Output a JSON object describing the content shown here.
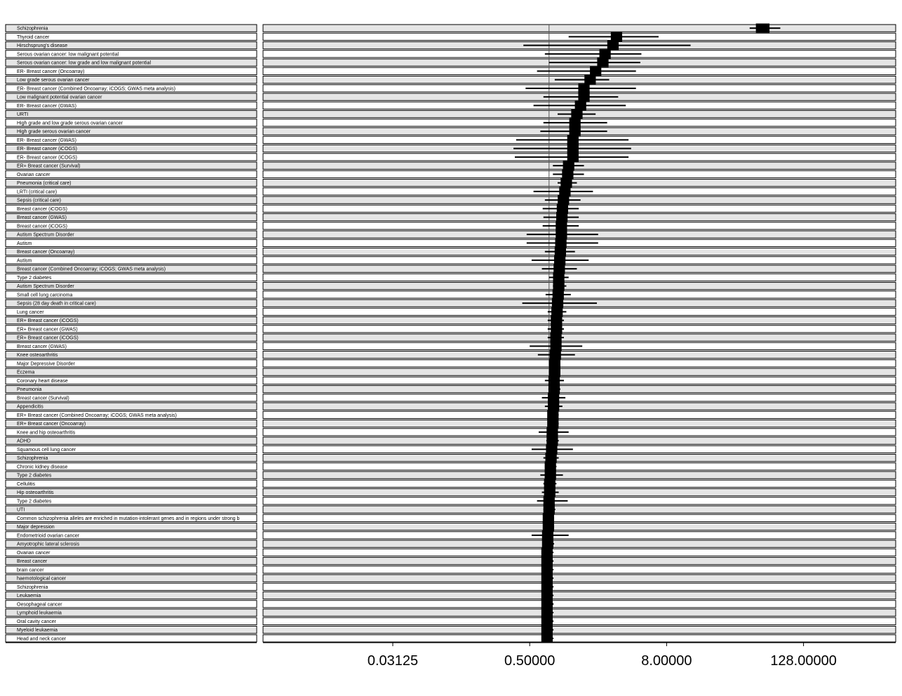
{
  "chart_data": {
    "type": "forest",
    "xscale": "log2",
    "xlabel": "",
    "ylabel": "",
    "xlim": [
      0.0039,
      512
    ],
    "reference_line": 0.74,
    "x_ticks": [
      "0.03125",
      "0.50000",
      "8.00000",
      "128.00000"
    ],
    "x_tick_values": [
      0.03125,
      0.5,
      8,
      128
    ],
    "rows": [
      {
        "label": "Schizophrenia",
        "estimate": 56,
        "lower": 43,
        "upper": 80,
        "weight": 0.3
      },
      {
        "label": "Thyroid cancer",
        "estimate": 2.9,
        "lower": 1.1,
        "upper": 6.8,
        "weight": 0.25
      },
      {
        "label": "Hirschsprung's disease",
        "estimate": 2.7,
        "lower": 0.44,
        "upper": 13,
        "weight": 0.25
      },
      {
        "label": "Serous ovarian cancer: low malignant potential",
        "estimate": 2.3,
        "lower": 0.68,
        "upper": 4.8,
        "weight": 0.25
      },
      {
        "label": "Serous ovarian cancer: low grade and low malignant potential",
        "estimate": 2.2,
        "lower": 0.74,
        "upper": 4.7,
        "weight": 0.25
      },
      {
        "label": "ER- Breast cancer (Oncoarray)",
        "estimate": 1.9,
        "lower": 0.58,
        "upper": 4.3,
        "weight": 0.25
      },
      {
        "label": "Low grade serous ovarian cancer",
        "estimate": 1.7,
        "lower": 0.83,
        "upper": 2.5,
        "weight": 0.25
      },
      {
        "label": "ER- Breast cancer (Combined Oncoarray; iCOGS; GWAS meta analysis)",
        "estimate": 1.5,
        "lower": 0.46,
        "upper": 4.3,
        "weight": 0.25
      },
      {
        "label": "Low malignant potential ovarian cancer",
        "estimate": 1.5,
        "lower": 0.66,
        "upper": 3.0,
        "weight": 0.25
      },
      {
        "label": "ER- Breast cancer (GWAS)",
        "estimate": 1.4,
        "lower": 0.54,
        "upper": 3.5,
        "weight": 0.25
      },
      {
        "label": "URTI",
        "estimate": 1.3,
        "lower": 0.88,
        "upper": 1.9,
        "weight": 0.25
      },
      {
        "label": "High grade and low grade serous ovarian cancer",
        "estimate": 1.25,
        "lower": 0.66,
        "upper": 2.4,
        "weight": 0.25
      },
      {
        "label": "High grade serous ovarian cancer",
        "estimate": 1.25,
        "lower": 0.62,
        "upper": 2.4,
        "weight": 0.25
      },
      {
        "label": "ER- Breast cancer (GWAS)",
        "estimate": 1.2,
        "lower": 0.38,
        "upper": 3.7,
        "weight": 0.25
      },
      {
        "label": "ER- Breast cancer (iCOGS)",
        "estimate": 1.2,
        "lower": 0.36,
        "upper": 3.9,
        "weight": 0.25
      },
      {
        "label": "ER- Breast cancer (iCOGS)",
        "estimate": 1.2,
        "lower": 0.37,
        "upper": 3.7,
        "weight": 0.25
      },
      {
        "label": "ER+ Breast cancer (Survival)",
        "estimate": 1.1,
        "lower": 0.8,
        "upper": 1.5,
        "weight": 0.25
      },
      {
        "label": "Ovarian cancer",
        "estimate": 1.08,
        "lower": 0.8,
        "upper": 1.5,
        "weight": 0.25
      },
      {
        "label": "Pneumonia (critical care)",
        "estimate": 1.05,
        "lower": 0.88,
        "upper": 1.3,
        "weight": 0.25
      },
      {
        "label": "LRTI (critical care)",
        "estimate": 1.02,
        "lower": 0.54,
        "upper": 1.8,
        "weight": 0.25
      },
      {
        "label": "Sepsis (critical care)",
        "estimate": 0.99,
        "lower": 0.68,
        "upper": 1.4,
        "weight": 0.25
      },
      {
        "label": "Breast cancer (iCOGS)",
        "estimate": 0.97,
        "lower": 0.65,
        "upper": 1.35,
        "weight": 0.25
      },
      {
        "label": "Breast cancer (GWAS)",
        "estimate": 0.96,
        "lower": 0.66,
        "upper": 1.35,
        "weight": 0.25
      },
      {
        "label": "Breast cancer (iCOGS)",
        "estimate": 0.95,
        "lower": 0.65,
        "upper": 1.35,
        "weight": 0.25
      },
      {
        "label": "Autism Spectrum Disorder",
        "estimate": 0.95,
        "lower": 0.47,
        "upper": 2.0,
        "weight": 0.25
      },
      {
        "label": "Autism",
        "estimate": 0.94,
        "lower": 0.47,
        "upper": 2.0,
        "weight": 0.25
      },
      {
        "label": "Breast cancer (Oncoarray)",
        "estimate": 0.93,
        "lower": 0.68,
        "upper": 1.25,
        "weight": 0.25
      },
      {
        "label": "Autism",
        "estimate": 0.92,
        "lower": 0.52,
        "upper": 1.65,
        "weight": 0.25
      },
      {
        "label": "Breast cancer (Combined Oncoarray; iCOGS; GWAS meta analysis)",
        "estimate": 0.91,
        "lower": 0.64,
        "upper": 1.3,
        "weight": 0.25
      },
      {
        "label": "Type 2 diabetes",
        "estimate": 0.9,
        "lower": 0.74,
        "upper": 1.1,
        "weight": 0.25
      },
      {
        "label": "Autism Spectrum Disorder",
        "estimate": 0.9,
        "lower": 0.8,
        "upper": 1.05,
        "weight": 0.25
      },
      {
        "label": "Small cell lung carcinoma",
        "estimate": 0.89,
        "lower": 0.69,
        "upper": 1.15,
        "weight": 0.25
      },
      {
        "label": "Sepsis (28 day death in critical care)",
        "estimate": 0.88,
        "lower": 0.43,
        "upper": 1.95,
        "weight": 0.25
      },
      {
        "label": "Lung cancer",
        "estimate": 0.87,
        "lower": 0.72,
        "upper": 1.05,
        "weight": 0.25
      },
      {
        "label": "ER+ Breast cancer (iCOGS)",
        "estimate": 0.86,
        "lower": 0.72,
        "upper": 1.0,
        "weight": 0.25
      },
      {
        "label": "ER+ Breast cancer (GWAS)",
        "estimate": 0.86,
        "lower": 0.72,
        "upper": 1.0,
        "weight": 0.25
      },
      {
        "label": "ER+ Breast cancer (iCOGS)",
        "estimate": 0.85,
        "lower": 0.72,
        "upper": 1.0,
        "weight": 0.25
      },
      {
        "label": "Breast cancer (GWAS)",
        "estimate": 0.85,
        "lower": 0.5,
        "upper": 1.45,
        "weight": 0.25
      },
      {
        "label": "Knee osteoarthritis",
        "estimate": 0.84,
        "lower": 0.59,
        "upper": 1.25,
        "weight": 0.25
      },
      {
        "label": "Major Depressive Disorder",
        "estimate": 0.83,
        "lower": 0.75,
        "upper": 0.93,
        "weight": 0.25
      },
      {
        "label": "Eczema",
        "estimate": 0.83,
        "lower": 0.74,
        "upper": 0.93,
        "weight": 0.25
      },
      {
        "label": "Coronary heart disease",
        "estimate": 0.82,
        "lower": 0.68,
        "upper": 1.0,
        "weight": 0.25
      },
      {
        "label": "Pneumonia",
        "estimate": 0.82,
        "lower": 0.73,
        "upper": 0.93,
        "weight": 0.25
      },
      {
        "label": "Breast cancer (Survival)",
        "estimate": 0.81,
        "lower": 0.64,
        "upper": 1.03,
        "weight": 0.25
      },
      {
        "label": "Appendicitis",
        "estimate": 0.81,
        "lower": 0.68,
        "upper": 0.97,
        "weight": 0.25
      },
      {
        "label": "ER+ Breast cancer (Combined Oncoarray; iCOGS; GWAS meta analysis)",
        "estimate": 0.8,
        "lower": 0.72,
        "upper": 0.9,
        "weight": 0.25
      },
      {
        "label": "ER+ Breast cancer (Oncoarray)",
        "estimate": 0.8,
        "lower": 0.72,
        "upper": 0.9,
        "weight": 0.25
      },
      {
        "label": "Knee and hip osteoarthritis",
        "estimate": 0.79,
        "lower": 0.6,
        "upper": 1.1,
        "weight": 0.25
      },
      {
        "label": "ADHD",
        "estimate": 0.79,
        "lower": 0.7,
        "upper": 0.9,
        "weight": 0.25
      },
      {
        "label": "Squamous cell lung cancer",
        "estimate": 0.78,
        "lower": 0.52,
        "upper": 1.2,
        "weight": 0.25
      },
      {
        "label": "Schizophrenia",
        "estimate": 0.77,
        "lower": 0.66,
        "upper": 0.9,
        "weight": 0.25
      },
      {
        "label": "Chronic kidney disease",
        "estimate": 0.76,
        "lower": 0.68,
        "upper": 0.86,
        "weight": 0.25
      },
      {
        "label": "Type 2 diabetes",
        "estimate": 0.76,
        "lower": 0.62,
        "upper": 0.98,
        "weight": 0.25
      },
      {
        "label": "Cellulitis",
        "estimate": 0.75,
        "lower": 0.66,
        "upper": 0.86,
        "weight": 0.25
      },
      {
        "label": "Hip osteoarthritis",
        "estimate": 0.75,
        "lower": 0.64,
        "upper": 0.9,
        "weight": 0.25
      },
      {
        "label": "Type 2 diabetes",
        "estimate": 0.74,
        "lower": 0.58,
        "upper": 1.08,
        "weight": 0.25
      },
      {
        "label": "UTI",
        "estimate": 0.74,
        "lower": 0.66,
        "upper": 0.84,
        "weight": 0.25
      },
      {
        "label": "Common schizophrenia alleles are enriched in mutation-intolerant genes and in regions under strong b",
        "estimate": 0.73,
        "lower": 0.66,
        "upper": 0.82,
        "weight": 0.25
      },
      {
        "label": "Major depression",
        "estimate": 0.73,
        "lower": 0.66,
        "upper": 0.82,
        "weight": 0.25
      },
      {
        "label": "Endometrioid ovarian cancer",
        "estimate": 0.72,
        "lower": 0.52,
        "upper": 1.1,
        "weight": 0.25
      },
      {
        "label": "Amyotrophic lateral sclerosis",
        "estimate": 0.72,
        "lower": 0.65,
        "upper": 0.82,
        "weight": 0.25
      },
      {
        "label": "Ovarian cancer",
        "estimate": 0.71,
        "lower": 0.64,
        "upper": 0.81,
        "weight": 0.25
      },
      {
        "label": "Breast cancer",
        "estimate": 0.71,
        "lower": 0.64,
        "upper": 0.81,
        "weight": 0.25
      },
      {
        "label": "brain cancer",
        "estimate": 0.71,
        "lower": 0.64,
        "upper": 0.81,
        "weight": 0.25
      },
      {
        "label": "haemotological cancer",
        "estimate": 0.71,
        "lower": 0.64,
        "upper": 0.81,
        "weight": 0.25
      },
      {
        "label": "Schizophrenia",
        "estimate": 0.71,
        "lower": 0.64,
        "upper": 0.81,
        "weight": 0.25
      },
      {
        "label": "Leukaemia",
        "estimate": 0.71,
        "lower": 0.64,
        "upper": 0.81,
        "weight": 0.25
      },
      {
        "label": "Oesophageal cancer",
        "estimate": 0.71,
        "lower": 0.64,
        "upper": 0.81,
        "weight": 0.25
      },
      {
        "label": "Lymphoid leukaemia",
        "estimate": 0.71,
        "lower": 0.64,
        "upper": 0.81,
        "weight": 0.25
      },
      {
        "label": "Oral cavity cancer",
        "estimate": 0.71,
        "lower": 0.64,
        "upper": 0.81,
        "weight": 0.25
      },
      {
        "label": "Myeloid leukaemia",
        "estimate": 0.71,
        "lower": 0.64,
        "upper": 0.81,
        "weight": 0.25
      },
      {
        "label": "Head and neck cancer",
        "estimate": 0.71,
        "lower": 0.64,
        "upper": 0.81,
        "weight": 0.25
      }
    ]
  },
  "colors": {
    "row_odd": "#e5e5e5",
    "row_even": "#ffffff",
    "mark": "#000000",
    "frame": "#000000",
    "reference_line": "#555555"
  }
}
